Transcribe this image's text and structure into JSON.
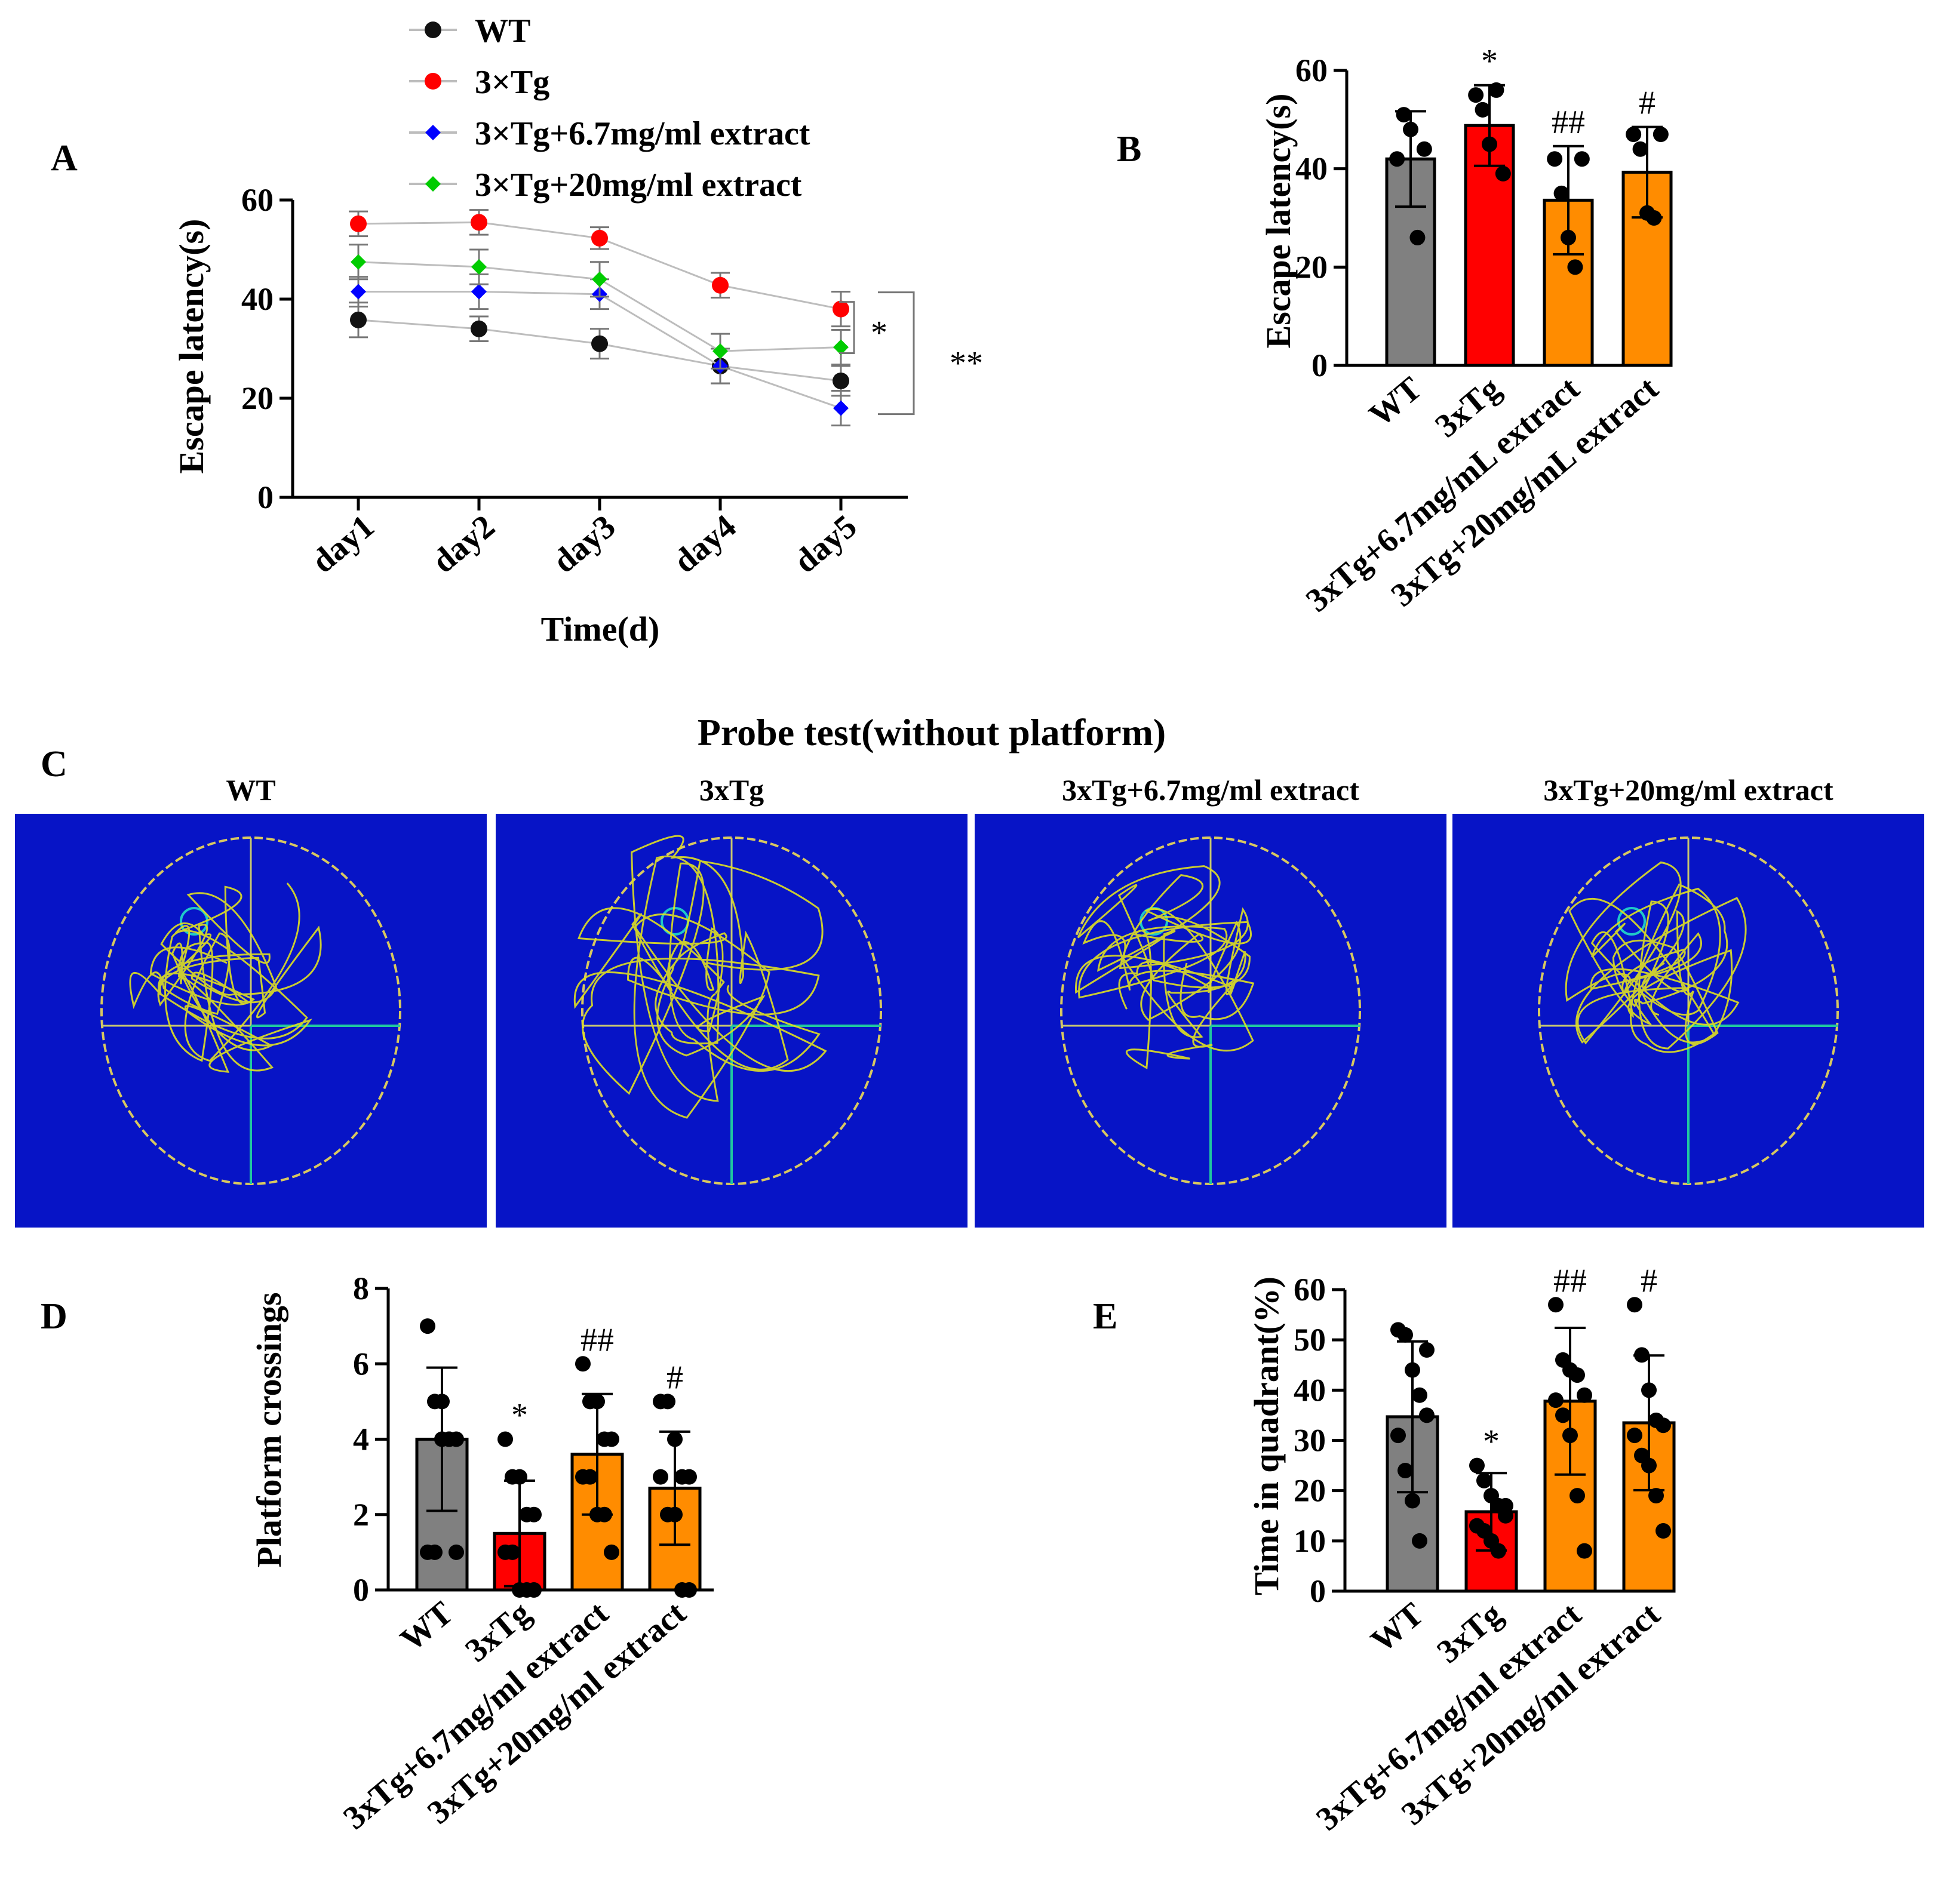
{
  "colors": {
    "wt": "#111111",
    "tg": "#ff0000",
    "tg67": "#0000ff",
    "tg20": "#00cc00",
    "bar_wt": "#808080",
    "bar_tg": "#ff0000",
    "bar_extract": "#ff8c00",
    "maze_bg": "#0714c6",
    "path": "#e0e020",
    "pool": "#d8c860"
  },
  "chart_data": [
    {
      "panel": "A",
      "type": "line",
      "xlabel": "Time(d)",
      "ylabel": "Escape latency(s)",
      "ylim": [
        0,
        60
      ],
      "yticks": [
        "0",
        "20",
        "40",
        "60"
      ],
      "categories": [
        "day1",
        "day2",
        "day3",
        "day4",
        "day5"
      ],
      "series": [
        {
          "name": "WT",
          "key": "wt",
          "marker": "circle",
          "values": [
            35.8,
            34,
            31,
            26.5,
            23.5
          ],
          "errors": [
            3.5,
            2.5,
            3,
            3.5,
            3
          ]
        },
        {
          "name": "3×Tg",
          "key": "tg",
          "marker": "circle",
          "values": [
            55.2,
            55.5,
            52.3,
            42.8,
            38
          ],
          "errors": [
            2.5,
            2.5,
            2.2,
            2.5,
            3.5
          ]
        },
        {
          "name": "3×Tg+6.7mg/ml extract",
          "key": "tg67",
          "marker": "diamond",
          "values": [
            41.5,
            41.5,
            41,
            26.5,
            18
          ],
          "errors": [
            3,
            3.5,
            3,
            3.5,
            3.5
          ]
        },
        {
          "name": "3×Tg+20mg/ml extract",
          "key": "tg20",
          "marker": "diamond",
          "values": [
            47.5,
            46.5,
            44,
            29.5,
            30.3
          ],
          "errors": [
            3.5,
            3.5,
            3.5,
            3.5,
            3.5
          ]
        }
      ],
      "significance": [
        {
          "label": "*",
          "between": [
            "3×Tg",
            "3×Tg+20mg/ml extract"
          ]
        },
        {
          "label": "**",
          "between": [
            "3×Tg",
            "3×Tg+6.7mg/ml extract"
          ]
        }
      ]
    },
    {
      "panel": "B",
      "type": "bar",
      "ylabel": "Escape latency(s)",
      "ylim": [
        0,
        60
      ],
      "yticks": [
        "0",
        "20",
        "40",
        "60"
      ],
      "categories": [
        "WT",
        "3xTg",
        "3xTg+6.7mg/mL extract",
        "3xTg+20mg/mL extract"
      ],
      "bar_colors": [
        "bar_wt",
        "bar_tg",
        "bar_extract",
        "bar_extract"
      ],
      "values": [
        42,
        48.8,
        33.6,
        39.3
      ],
      "errors": [
        9.7,
        8.2,
        11,
        9.2
      ],
      "points": [
        [
          42,
          51,
          48,
          26,
          44
        ],
        [
          55,
          52,
          45,
          56,
          39
        ],
        [
          42,
          35,
          26,
          20,
          42
        ],
        [
          47,
          44,
          31,
          30,
          47
        ]
      ],
      "annotations": [
        "",
        "*",
        "##",
        "#"
      ]
    },
    {
      "panel": "D",
      "type": "bar",
      "ylabel": "Platform crossings",
      "ylim": [
        0,
        8
      ],
      "yticks": [
        "0",
        "2",
        "4",
        "6",
        "8"
      ],
      "categories": [
        "WT",
        "3xTg",
        "3xTg+6.7mg/ml extract",
        "3xTg+20mg/ml extract"
      ],
      "bar_colors": [
        "bar_wt",
        "bar_tg",
        "bar_extract",
        "bar_extract"
      ],
      "values": [
        4,
        1.5,
        3.6,
        2.7
      ],
      "errors": [
        1.9,
        1.4,
        1.6,
        1.5
      ],
      "points": [
        [
          7,
          5,
          4,
          4,
          4,
          1,
          1,
          5,
          4,
          1
        ],
        [
          4,
          3,
          3,
          2,
          2,
          1,
          1,
          0,
          0,
          0
        ],
        [
          6,
          5,
          5,
          4,
          4,
          3,
          3,
          2,
          2,
          1
        ],
        [
          5,
          5,
          4,
          3,
          3,
          3,
          2,
          2,
          0,
          0
        ]
      ],
      "annotations": [
        "",
        "*",
        "##",
        "#"
      ]
    },
    {
      "panel": "E",
      "type": "bar",
      "ylabel": "Time in quadrant(%)",
      "ylim": [
        0,
        60
      ],
      "yticks": [
        "0",
        "10",
        "20",
        "30",
        "40",
        "50",
        "60"
      ],
      "categories": [
        "WT",
        "3xTg",
        "3xTg+6.7mg/ml extract",
        "3xTg+20mg/ml extract"
      ],
      "bar_colors": [
        "bar_wt",
        "bar_tg",
        "bar_extract",
        "bar_extract"
      ],
      "values": [
        34.7,
        15.8,
        37.8,
        33.5
      ],
      "errors": [
        15,
        7.7,
        14.6,
        13.4
      ],
      "points": [
        [
          52,
          51,
          44,
          39,
          35,
          31,
          24,
          18,
          10,
          48
        ],
        [
          25,
          22,
          19,
          17,
          15,
          13,
          12,
          10,
          8,
          17
        ],
        [
          57,
          46,
          44,
          43,
          39,
          38,
          35,
          31,
          19,
          8
        ],
        [
          57,
          47,
          40,
          34,
          33,
          31,
          27,
          25,
          19,
          12
        ]
      ],
      "annotations": [
        "",
        "*",
        "##",
        "#"
      ]
    }
  ],
  "panel_letters": {
    "a": "A",
    "b": "B",
    "c": "C",
    "d": "D",
    "e": "E"
  },
  "probe": {
    "title": "Probe test(without platform)",
    "groups": [
      "WT",
      "3xTg",
      "3xTg+6.7mg/ml extract",
      "3xTg+20mg/ml extract"
    ]
  }
}
